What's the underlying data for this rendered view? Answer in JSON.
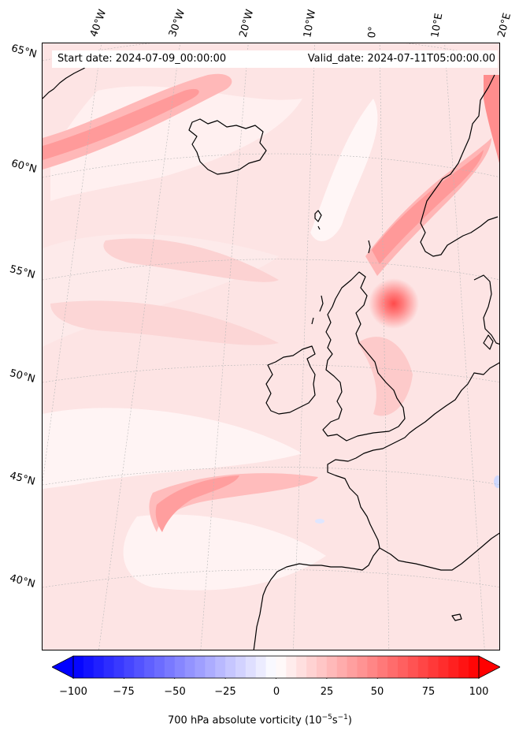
{
  "header": {
    "start_date": "Start date: 2024-07-09_00:00:00",
    "valid_date": "Valid_date: 2024-07-11T05:00:00.00"
  },
  "longitude_labels": [
    "40°W",
    "30°W",
    "20°W",
    "10°W",
    "0°",
    "10°E",
    "20°E"
  ],
  "latitude_labels": [
    "65°N",
    "60°N",
    "55°N",
    "50°N",
    "45°N",
    "40°N"
  ],
  "colorbar": {
    "ticks": [
      "−100",
      "−75",
      "−50",
      "−25",
      "0",
      "25",
      "50",
      "75",
      "100"
    ],
    "min": -100,
    "max": 100,
    "min_color": "#0000ff",
    "mid_color": "#ffffff",
    "max_color": "#ff0000",
    "title": "700 hPa absolute vorticity (10",
    "title_exp1": "−5",
    "title_mid": "s",
    "title_exp2": "−1",
    "title_end": ")"
  },
  "colors": {
    "field_background": "#fde6e6",
    "coastline": "#000000",
    "gridline": "#bbbbbb"
  }
}
